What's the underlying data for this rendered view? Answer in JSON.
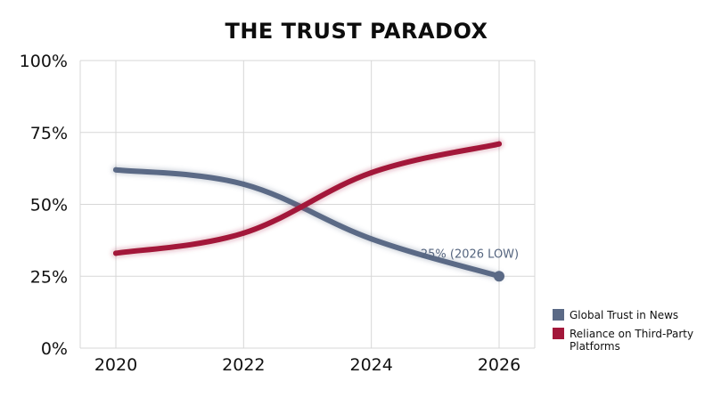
{
  "chart_data": {
    "type": "line",
    "title": "THE TRUST PARADOX",
    "x": [
      2020,
      2022,
      2024,
      2026
    ],
    "x_tick_labels": [
      "2020",
      "2022",
      "2024",
      "2026"
    ],
    "ylim": [
      0,
      100
    ],
    "y_ticks": [
      0,
      25,
      50,
      75,
      100
    ],
    "y_tick_labels": [
      "0%",
      "25%",
      "50%",
      "75%",
      "100%"
    ],
    "grid": true,
    "legend_position": "bottom-right",
    "series": [
      {
        "name": "Global Trust in News",
        "legend_lines": [
          "Global Trust in News"
        ],
        "color": "#5b6a86",
        "values": [
          62,
          57,
          38,
          25
        ]
      },
      {
        "name": "Reliance on Third-Party Platforms",
        "legend_lines": [
          "Reliance on Third-Party",
          "Platforms"
        ],
        "color": "#a3173a",
        "values": [
          33,
          40,
          61,
          71
        ]
      }
    ],
    "annotations": [
      {
        "text": "25% (2026 LOW)",
        "series": 0,
        "x": 2026,
        "y": 25
      }
    ]
  }
}
